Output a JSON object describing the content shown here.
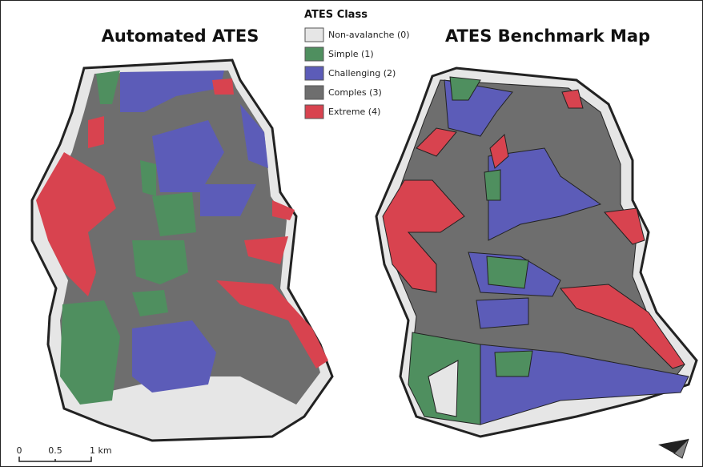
{
  "maps": [
    {
      "title": "Automated ATES"
    },
    {
      "title": "ATES Benchmark Map"
    }
  ],
  "legend": {
    "title": "ATES Class",
    "items": [
      {
        "label": "Non-avalanche (0)",
        "color": "#e6e6e6"
      },
      {
        "label": "Simple (1)",
        "color": "#4f8f5f"
      },
      {
        "label": "Challenging (2)",
        "color": "#5c5cb8"
      },
      {
        "label": "Comples (3)",
        "color": "#6e6e6e"
      },
      {
        "label": "Extreme (4)",
        "color": "#d8434f"
      }
    ]
  },
  "scale_bar": {
    "labels": [
      "0",
      "0.5",
      "1 km"
    ]
  }
}
